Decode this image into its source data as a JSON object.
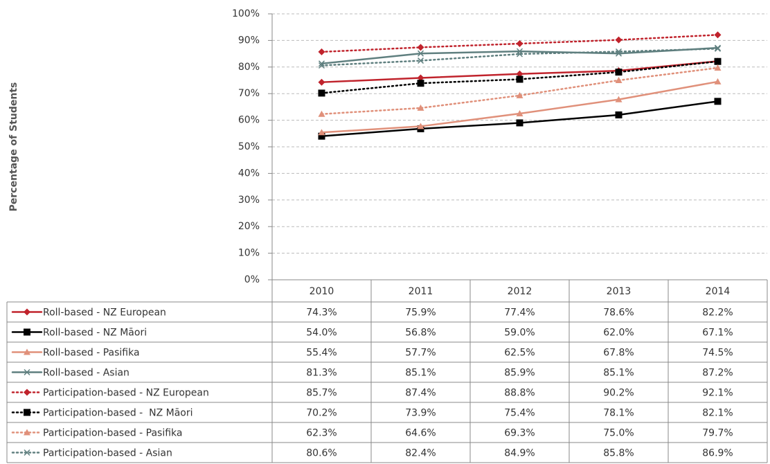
{
  "chart_data": {
    "type": "line",
    "y_label": "Percentage of Students",
    "categories": [
      "2010",
      "2011",
      "2012",
      "2013",
      "2014"
    ],
    "ylim": [
      0,
      100
    ],
    "yticks": [
      {
        "value": 0,
        "label": "0%"
      },
      {
        "value": 10,
        "label": "10%"
      },
      {
        "value": 20,
        "label": "20%"
      },
      {
        "value": 30,
        "label": "30%"
      },
      {
        "value": 40,
        "label": "40%"
      },
      {
        "value": 50,
        "label": "50%"
      },
      {
        "value": 60,
        "label": "60%"
      },
      {
        "value": 70,
        "label": "70%"
      },
      {
        "value": 80,
        "label": "80%"
      },
      {
        "value": 90,
        "label": "90%"
      },
      {
        "value": 100,
        "label": "100%"
      }
    ],
    "grid": true,
    "series": [
      {
        "name": "Roll-based - NZ European",
        "color": "#c0232c",
        "marker": "diamond",
        "dash": "solid",
        "values": [
          74.3,
          75.9,
          77.4,
          78.6,
          82.2
        ],
        "value_labels": [
          "74.3%",
          "75.9%",
          "77.4%",
          "78.6%",
          "82.2%"
        ]
      },
      {
        "name": "Roll-based - NZ Māori",
        "color": "#000000",
        "marker": "square",
        "dash": "solid",
        "values": [
          54.0,
          56.8,
          59.0,
          62.0,
          67.1
        ],
        "value_labels": [
          "54.0%",
          "56.8%",
          "59.0%",
          "62.0%",
          "67.1%"
        ]
      },
      {
        "name": "Roll-based - Pasifika",
        "color": "#e0907a",
        "marker": "triangle",
        "dash": "solid",
        "values": [
          55.4,
          57.7,
          62.5,
          67.8,
          74.5
        ],
        "value_labels": [
          "55.4%",
          "57.7%",
          "62.5%",
          "67.8%",
          "74.5%"
        ]
      },
      {
        "name": "Roll-based - Asian",
        "color": "#5f7f7f",
        "marker": "x",
        "dash": "solid",
        "values": [
          81.3,
          85.1,
          85.9,
          85.1,
          87.2
        ],
        "value_labels": [
          "81.3%",
          "85.1%",
          "85.9%",
          "85.1%",
          "87.2%"
        ]
      },
      {
        "name": "Participation-based - NZ European",
        "color": "#c0232c",
        "marker": "diamond",
        "dash": "dotted",
        "values": [
          85.7,
          87.4,
          88.8,
          90.2,
          92.1
        ],
        "value_labels": [
          "85.7%",
          "87.4%",
          "88.8%",
          "90.2%",
          "92.1%"
        ]
      },
      {
        "name": "Participation-based -  NZ Māori",
        "color": "#000000",
        "marker": "square",
        "dash": "dotted",
        "values": [
          70.2,
          73.9,
          75.4,
          78.1,
          82.1
        ],
        "value_labels": [
          "70.2%",
          "73.9%",
          "75.4%",
          "78.1%",
          "82.1%"
        ]
      },
      {
        "name": "Participation-based - Pasifika",
        "color": "#e0907a",
        "marker": "triangle",
        "dash": "dotted",
        "values": [
          62.3,
          64.6,
          69.3,
          75.0,
          79.7
        ],
        "value_labels": [
          "62.3%",
          "64.6%",
          "69.3%",
          "75.0%",
          "79.7%"
        ]
      },
      {
        "name": "Participation-based - Asian",
        "color": "#5f7f7f",
        "marker": "x",
        "dash": "dotted",
        "values": [
          80.6,
          82.4,
          84.9,
          85.8,
          86.9
        ],
        "value_labels": [
          "80.6%",
          "82.4%",
          "84.9%",
          "85.8%",
          "86.9%"
        ]
      }
    ]
  }
}
